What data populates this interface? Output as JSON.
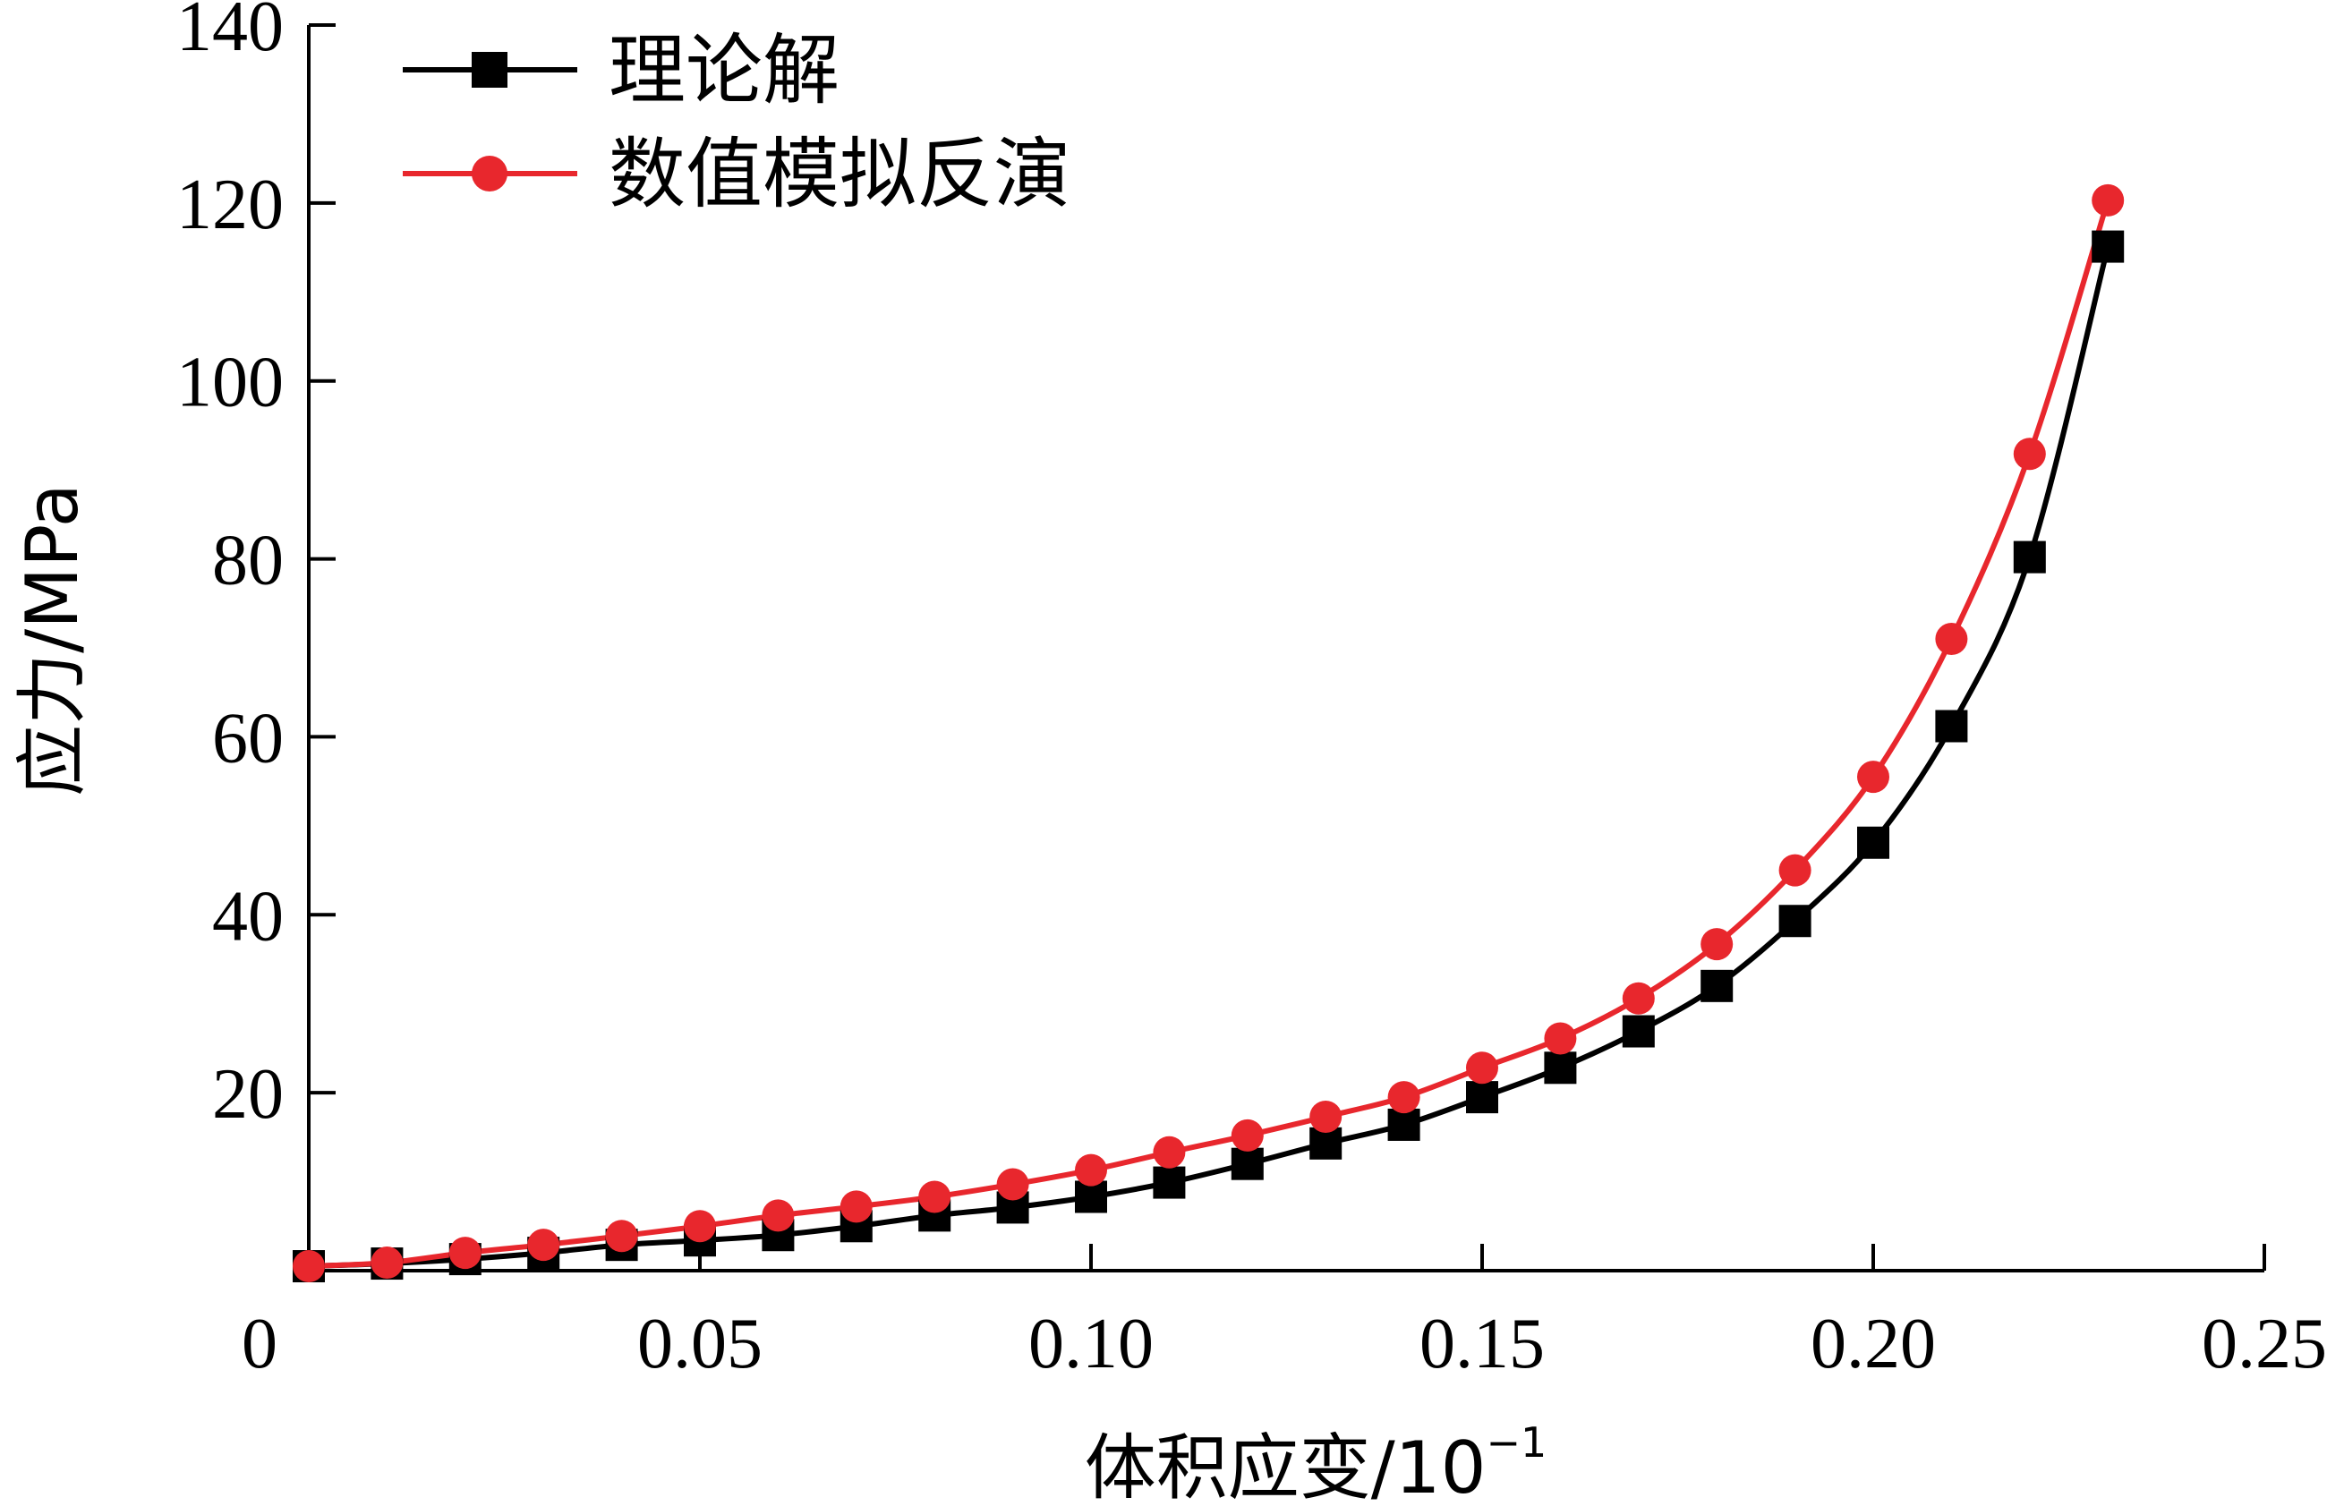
{
  "chart_data": {
    "type": "line",
    "title": "",
    "xlabel": "体积应变/10",
    "xlabel_sup": "−1",
    "ylabel": "应力/MPa",
    "xlim": [
      0,
      0.25
    ],
    "ylim": [
      0,
      140
    ],
    "x_ticks": [
      0,
      0.05,
      0.1,
      0.15,
      0.2,
      0.25
    ],
    "x_tick_labels": [
      "0",
      "0.05",
      "0.10",
      "0.15",
      "0.20",
      "0.25"
    ],
    "y_ticks": [
      20,
      40,
      60,
      80,
      100,
      120,
      140
    ],
    "y_tick_labels": [
      "20",
      "40",
      "60",
      "80",
      "100",
      "120",
      "140"
    ],
    "grid": false,
    "legend_position": "top-left",
    "series": [
      {
        "name": "理论解",
        "color": "#000000",
        "marker": "square",
        "x": [
          0.0,
          0.01,
          0.02,
          0.03,
          0.04,
          0.05,
          0.06,
          0.07,
          0.08,
          0.09,
          0.1,
          0.11,
          0.12,
          0.13,
          0.14,
          0.15,
          0.16,
          0.17,
          0.18,
          0.19,
          0.2,
          0.21,
          0.22,
          0.23
        ],
        "y": [
          0.5,
          0.8,
          1.3,
          2.0,
          2.9,
          3.4,
          4.0,
          5.0,
          6.2,
          7.1,
          8.3,
          9.9,
          12.0,
          14.3,
          16.4,
          19.5,
          22.8,
          26.9,
          32.0,
          39.3,
          48.1,
          61.2,
          80.2,
          115.1
        ]
      },
      {
        "name": "数值模拟反演",
        "color": "#e8272d",
        "marker": "circle",
        "x": [
          0.0,
          0.01,
          0.02,
          0.03,
          0.04,
          0.05,
          0.06,
          0.07,
          0.08,
          0.09,
          0.1,
          0.11,
          0.12,
          0.13,
          0.14,
          0.15,
          0.16,
          0.17,
          0.18,
          0.19,
          0.2,
          0.21,
          0.22,
          0.23
        ],
        "y": [
          0.5,
          0.9,
          2.0,
          2.9,
          3.9,
          5.0,
          6.2,
          7.2,
          8.3,
          9.7,
          11.3,
          13.3,
          15.2,
          17.3,
          19.5,
          22.8,
          26.1,
          30.6,
          36.7,
          45.0,
          55.5,
          71.0,
          91.8,
          120.3
        ]
      }
    ]
  }
}
